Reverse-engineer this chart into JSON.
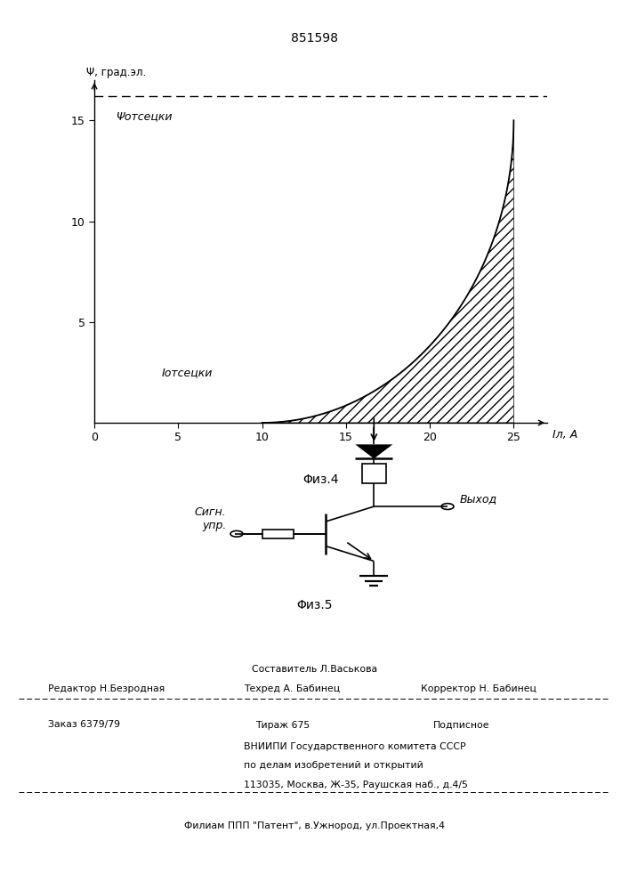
{
  "patent_number": "851598",
  "fig4": {
    "ylabel": "Ψ, град.эл.",
    "xaxis_label": "Iл, А",
    "fig_caption": "Φиз.4",
    "xlim": [
      0,
      27
    ],
    "ylim": [
      0,
      17
    ],
    "xticks": [
      0,
      5,
      10,
      15,
      20,
      25
    ],
    "yticks": [
      5,
      10,
      15
    ],
    "psi_dashed": 16.2,
    "psi_label": "Ψотсецки",
    "I_cut": 10.0,
    "curve_R": 15.0,
    "I_label": "Iотсецки",
    "hatch": "///"
  },
  "fig5": {
    "fig_caption": "Φиз.5",
    "signal_label": "Сигн.\nупр.",
    "output_label": "Выход"
  },
  "footer": {
    "compiler": "Составитель Л.Васькова",
    "editor": "Редактор Н.Безродная",
    "techred": "Техред А. Бабинец",
    "corrector": "Корректор Н. Бабинец",
    "order": "Заказ 6379/79",
    "copies": "Тираж 675",
    "subscription": "Подписное",
    "institute": "ВНИИПИ Государственного комитета СССР",
    "dept": "по делам изобретений и открытий",
    "address": "113035, Москва, Ж-35, Раушская наб., д.4/5",
    "branch": "Филиам ППП \"Патент\", в.Ужнород, ул.Проектная,4"
  }
}
